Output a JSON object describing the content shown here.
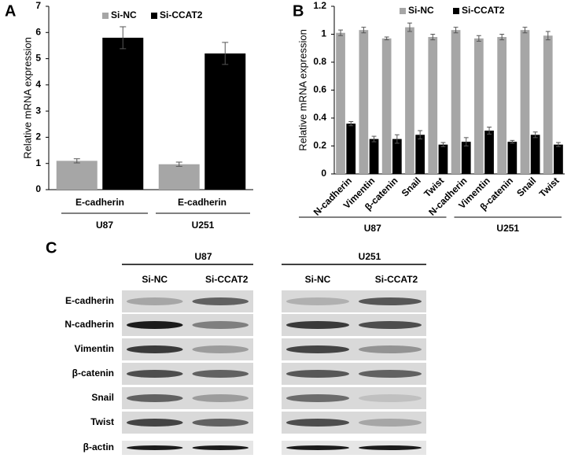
{
  "chart_data": [
    {
      "type": "bar",
      "panel_label": "A",
      "y_label": "Relative mRNA expression",
      "categories": [
        "E-cadherin",
        "E-cadherin"
      ],
      "groups": [
        "U87",
        "U251"
      ],
      "series": [
        {
          "name": "Si-NC",
          "color": "#a6a6a6",
          "values": [
            1.1,
            0.97
          ],
          "errors": [
            0.08,
            0.08
          ]
        },
        {
          "name": "Si-CCAT2",
          "color": "#000000",
          "values": [
            5.8,
            5.2
          ],
          "errors": [
            0.42,
            0.42
          ]
        }
      ],
      "ylim": [
        0,
        7
      ],
      "yticks": [
        0,
        1,
        2,
        3,
        4,
        5,
        6,
        7
      ],
      "grid": false
    },
    {
      "type": "bar",
      "panel_label": "B",
      "y_label": "Relative mRNA expression",
      "categories": [
        "N-cadherin",
        "Vimentin",
        "β-catenin",
        "Snail",
        "Twist",
        "N-cadherin",
        "Vimentin",
        "β-catenin",
        "Snail",
        "Twist"
      ],
      "groups": [
        "U87",
        "U251"
      ],
      "series": [
        {
          "name": "Si-NC",
          "color": "#a6a6a6",
          "values": [
            1.01,
            1.03,
            0.97,
            1.05,
            0.98,
            1.03,
            0.97,
            0.98,
            1.03,
            0.99
          ],
          "errors": [
            0.02,
            0.02,
            0.01,
            0.03,
            0.02,
            0.02,
            0.02,
            0.02,
            0.02,
            0.03
          ]
        },
        {
          "name": "Si-CCAT2",
          "color": "#000000",
          "values": [
            0.36,
            0.25,
            0.25,
            0.28,
            0.21,
            0.23,
            0.31,
            0.23,
            0.28,
            0.21
          ],
          "errors": [
            0.015,
            0.02,
            0.03,
            0.03,
            0.015,
            0.03,
            0.025,
            0.01,
            0.02,
            0.015
          ]
        }
      ],
      "ylim": [
        0,
        1.2
      ],
      "yticks": [
        0,
        0.2,
        0.4,
        0.6,
        0.8,
        1,
        1.2
      ],
      "grid": false
    }
  ],
  "blot": {
    "panel_label": "C",
    "cell_lines": [
      "U87",
      "U251"
    ],
    "conditions": [
      "Si-NC",
      "Si-CCAT2"
    ],
    "proteins": [
      "E-cadherin",
      "N-cadherin",
      "Vimentin",
      "β-catenin",
      "Snail",
      "Twist",
      "β-actin"
    ]
  }
}
